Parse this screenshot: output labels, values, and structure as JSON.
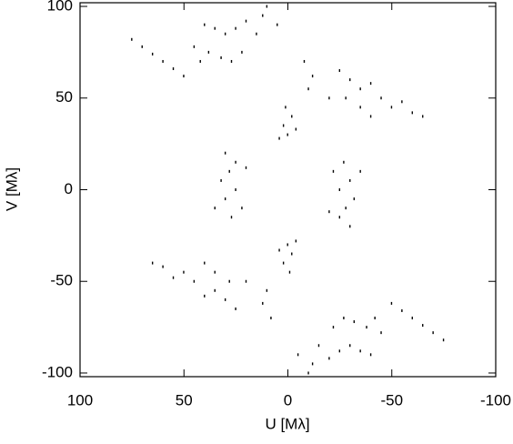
{
  "chart_data": {
    "type": "scatter",
    "x_label": "U [Mλ]",
    "y_label": "V [Mλ]",
    "xlim": [
      100,
      -100
    ],
    "ylim": [
      -102,
      102
    ],
    "xticks": [
      100,
      50,
      0,
      -50,
      -100
    ],
    "yticks": [
      -100,
      -50,
      0,
      50,
      100
    ],
    "color": "#000000",
    "x": [
      75,
      70,
      65,
      60,
      55,
      50,
      40,
      35,
      30,
      25,
      38,
      32,
      27,
      22,
      45,
      42,
      20,
      15,
      12,
      10,
      5,
      -25,
      -30,
      -35,
      -28,
      -40,
      -45,
      -50,
      -55,
      -60,
      -65,
      -40,
      -35,
      -20,
      0,
      2,
      -2,
      4,
      -4,
      1,
      30,
      25,
      28,
      32,
      25,
      30,
      20,
      35,
      27,
      22,
      -10,
      -12,
      -8,
      -75,
      -70,
      -65,
      -60,
      -55,
      -50,
      -40,
      -35,
      -30,
      -25,
      -38,
      -32,
      -27,
      -22,
      -45,
      -42,
      -20,
      -15,
      -12,
      -10,
      -5,
      25,
      30,
      35,
      28,
      40,
      45,
      50,
      55,
      60,
      65,
      40,
      35,
      20,
      0,
      -2,
      2,
      -4,
      4,
      -1,
      -30,
      -25,
      -28,
      -32,
      -25,
      -30,
      -20,
      -35,
      -27,
      -22,
      10,
      12,
      8
    ],
    "y": [
      82,
      78,
      74,
      70,
      66,
      62,
      90,
      88,
      85,
      88,
      75,
      72,
      70,
      75,
      78,
      70,
      92,
      85,
      95,
      100,
      90,
      65,
      60,
      55,
      50,
      58,
      50,
      45,
      48,
      42,
      40,
      40,
      45,
      50,
      30,
      35,
      40,
      28,
      33,
      45,
      20,
      15,
      10,
      5,
      0,
      -5,
      12,
      -10,
      -15,
      -10,
      55,
      62,
      70,
      -82,
      -78,
      -74,
      -70,
      -66,
      -62,
      -90,
      -88,
      -85,
      -88,
      -75,
      -72,
      -70,
      -75,
      -78,
      -70,
      -92,
      -85,
      -95,
      -100,
      -90,
      -65,
      -60,
      -55,
      -50,
      -58,
      -50,
      -45,
      -48,
      -42,
      -40,
      -40,
      -45,
      -50,
      -30,
      -35,
      -40,
      -28,
      -33,
      -45,
      -20,
      -15,
      -10,
      -5,
      0,
      5,
      -12,
      10,
      15,
      10,
      -55,
      -62,
      -70
    ]
  }
}
